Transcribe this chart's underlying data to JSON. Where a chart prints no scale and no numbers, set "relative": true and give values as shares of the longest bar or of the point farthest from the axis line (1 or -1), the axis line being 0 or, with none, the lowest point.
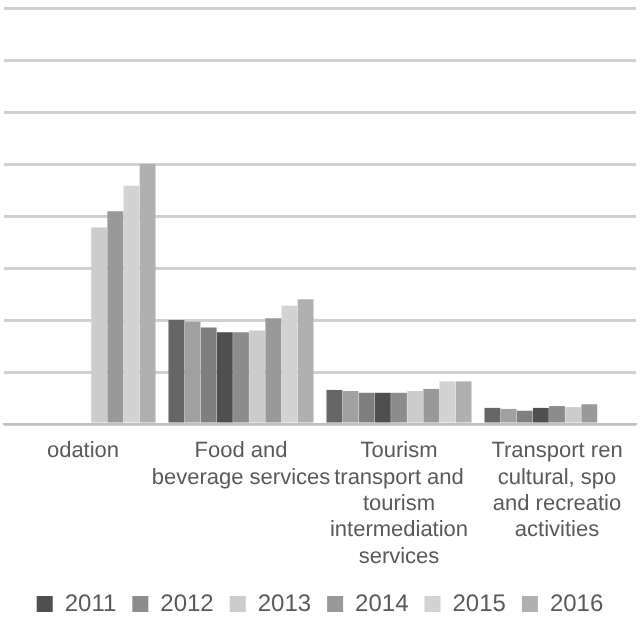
{
  "chart_data": {
    "type": "bar",
    "relative": true,
    "grid": "y",
    "legend": "bottom",
    "categories": [
      "odation",
      "Food and\nbeverage services",
      "Tourism\ntransport and\ntourism\nintermediation\nservices",
      "Transport ren\ncultural, spo\nand recreatio\nactivities"
    ],
    "series": [
      {
        "color": "#666666",
        "values": [
          null,
          0.4,
          0.131,
          0.062
        ]
      },
      {
        "color": "#a0a0a0",
        "values": [
          null,
          0.393,
          0.127,
          0.058
        ]
      },
      {
        "color": "#7f7f7f",
        "values": [
          null,
          0.371,
          0.12,
          0.051
        ]
      },
      {
        "name": "2011",
        "color": "#4f4f4f",
        "values": [
          null,
          0.353,
          0.12,
          0.062
        ]
      },
      {
        "name": "2012",
        "color": "#8c8c8c",
        "values": [
          null,
          0.353,
          0.12,
          0.069
        ]
      },
      {
        "name": "2013",
        "color": "#cccccc",
        "values": [
          0.756,
          0.36,
          0.127,
          0.065
        ]
      },
      {
        "name": "2014",
        "color": "#999999",
        "values": [
          0.818,
          0.407,
          0.135,
          0.076
        ]
      },
      {
        "name": "2015",
        "color": "#d3d3d3",
        "values": [
          0.916,
          0.455,
          0.164,
          null
        ]
      },
      {
        "name": "2016",
        "color": "#b0b0b0",
        "values": [
          1,
          0.48,
          0.164,
          null
        ]
      }
    ]
  }
}
